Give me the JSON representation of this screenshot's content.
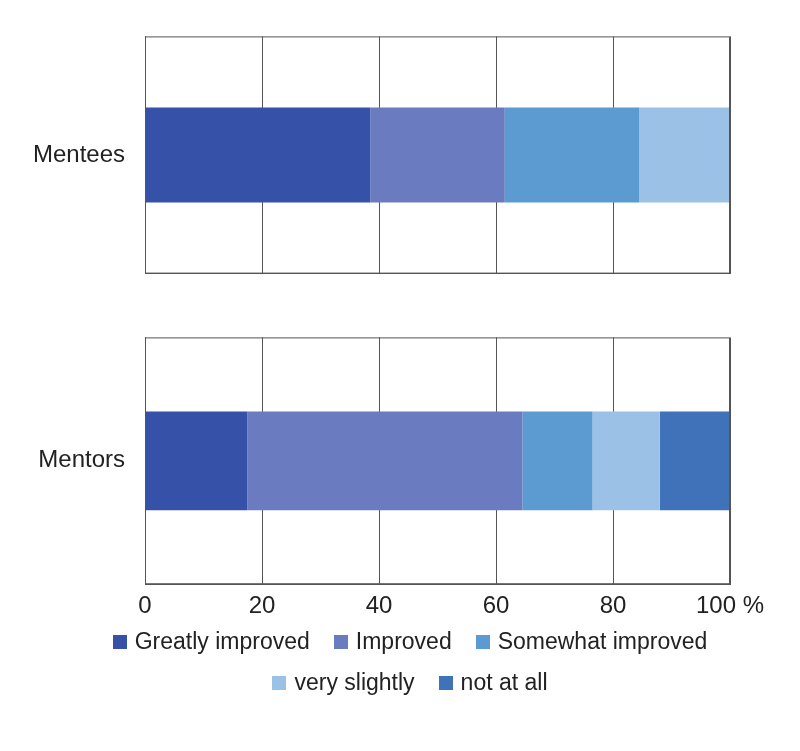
{
  "chart_data": {
    "type": "bar",
    "orientation": "horizontal",
    "stacked": true,
    "grid": true,
    "legend": "bottom",
    "categories": [
      "Mentees",
      "Mentors"
    ],
    "series": [
      {
        "name": "Greatly improved",
        "color": "#3652a8",
        "values": [
          38.5,
          17.5
        ]
      },
      {
        "name": "Improved",
        "color": "#6b7bbf",
        "values": [
          23,
          47
        ]
      },
      {
        "name": "Somewhat improved",
        "color": "#5b9bd1",
        "values": [
          23,
          12
        ]
      },
      {
        "name": "very slightly",
        "color": "#9bc2e6",
        "values": [
          15.5,
          11.5
        ]
      },
      {
        "name": "not at all",
        "color": "#3f72b8",
        "values": [
          0,
          12
        ]
      }
    ],
    "xlim": [
      0,
      100
    ],
    "xticks": [
      0,
      20,
      40,
      60,
      80,
      {
        "value": 100,
        "label": "100 %"
      }
    ]
  }
}
